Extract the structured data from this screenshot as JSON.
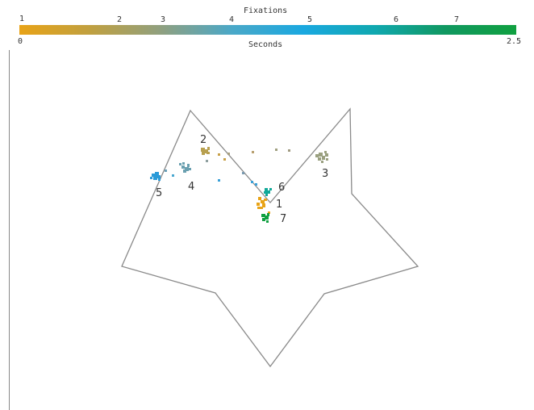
{
  "legend": {
    "title": "Fixations",
    "fixation_ticks": [
      "1",
      "2",
      "3",
      "4",
      "5",
      "6",
      "7"
    ],
    "time_label": "Seconds",
    "time_min": "0",
    "time_max": "2.5",
    "gradient_colors": [
      "#e8a317",
      "#c0a040",
      "#8fa080",
      "#4aa8c8",
      "#1aa8e0",
      "#10a8b0",
      "#109860",
      "#10a040"
    ]
  },
  "fixations": [
    {
      "label": "1",
      "color": "#e8a317"
    },
    {
      "label": "2",
      "color": "#b8a050"
    },
    {
      "label": "3",
      "color": "#9aa080"
    },
    {
      "label": "4",
      "color": "#6aa0b0"
    },
    {
      "label": "5",
      "color": "#2a9ad8"
    },
    {
      "label": "6",
      "color": "#10a898"
    },
    {
      "label": "7",
      "color": "#10a040"
    }
  ]
}
